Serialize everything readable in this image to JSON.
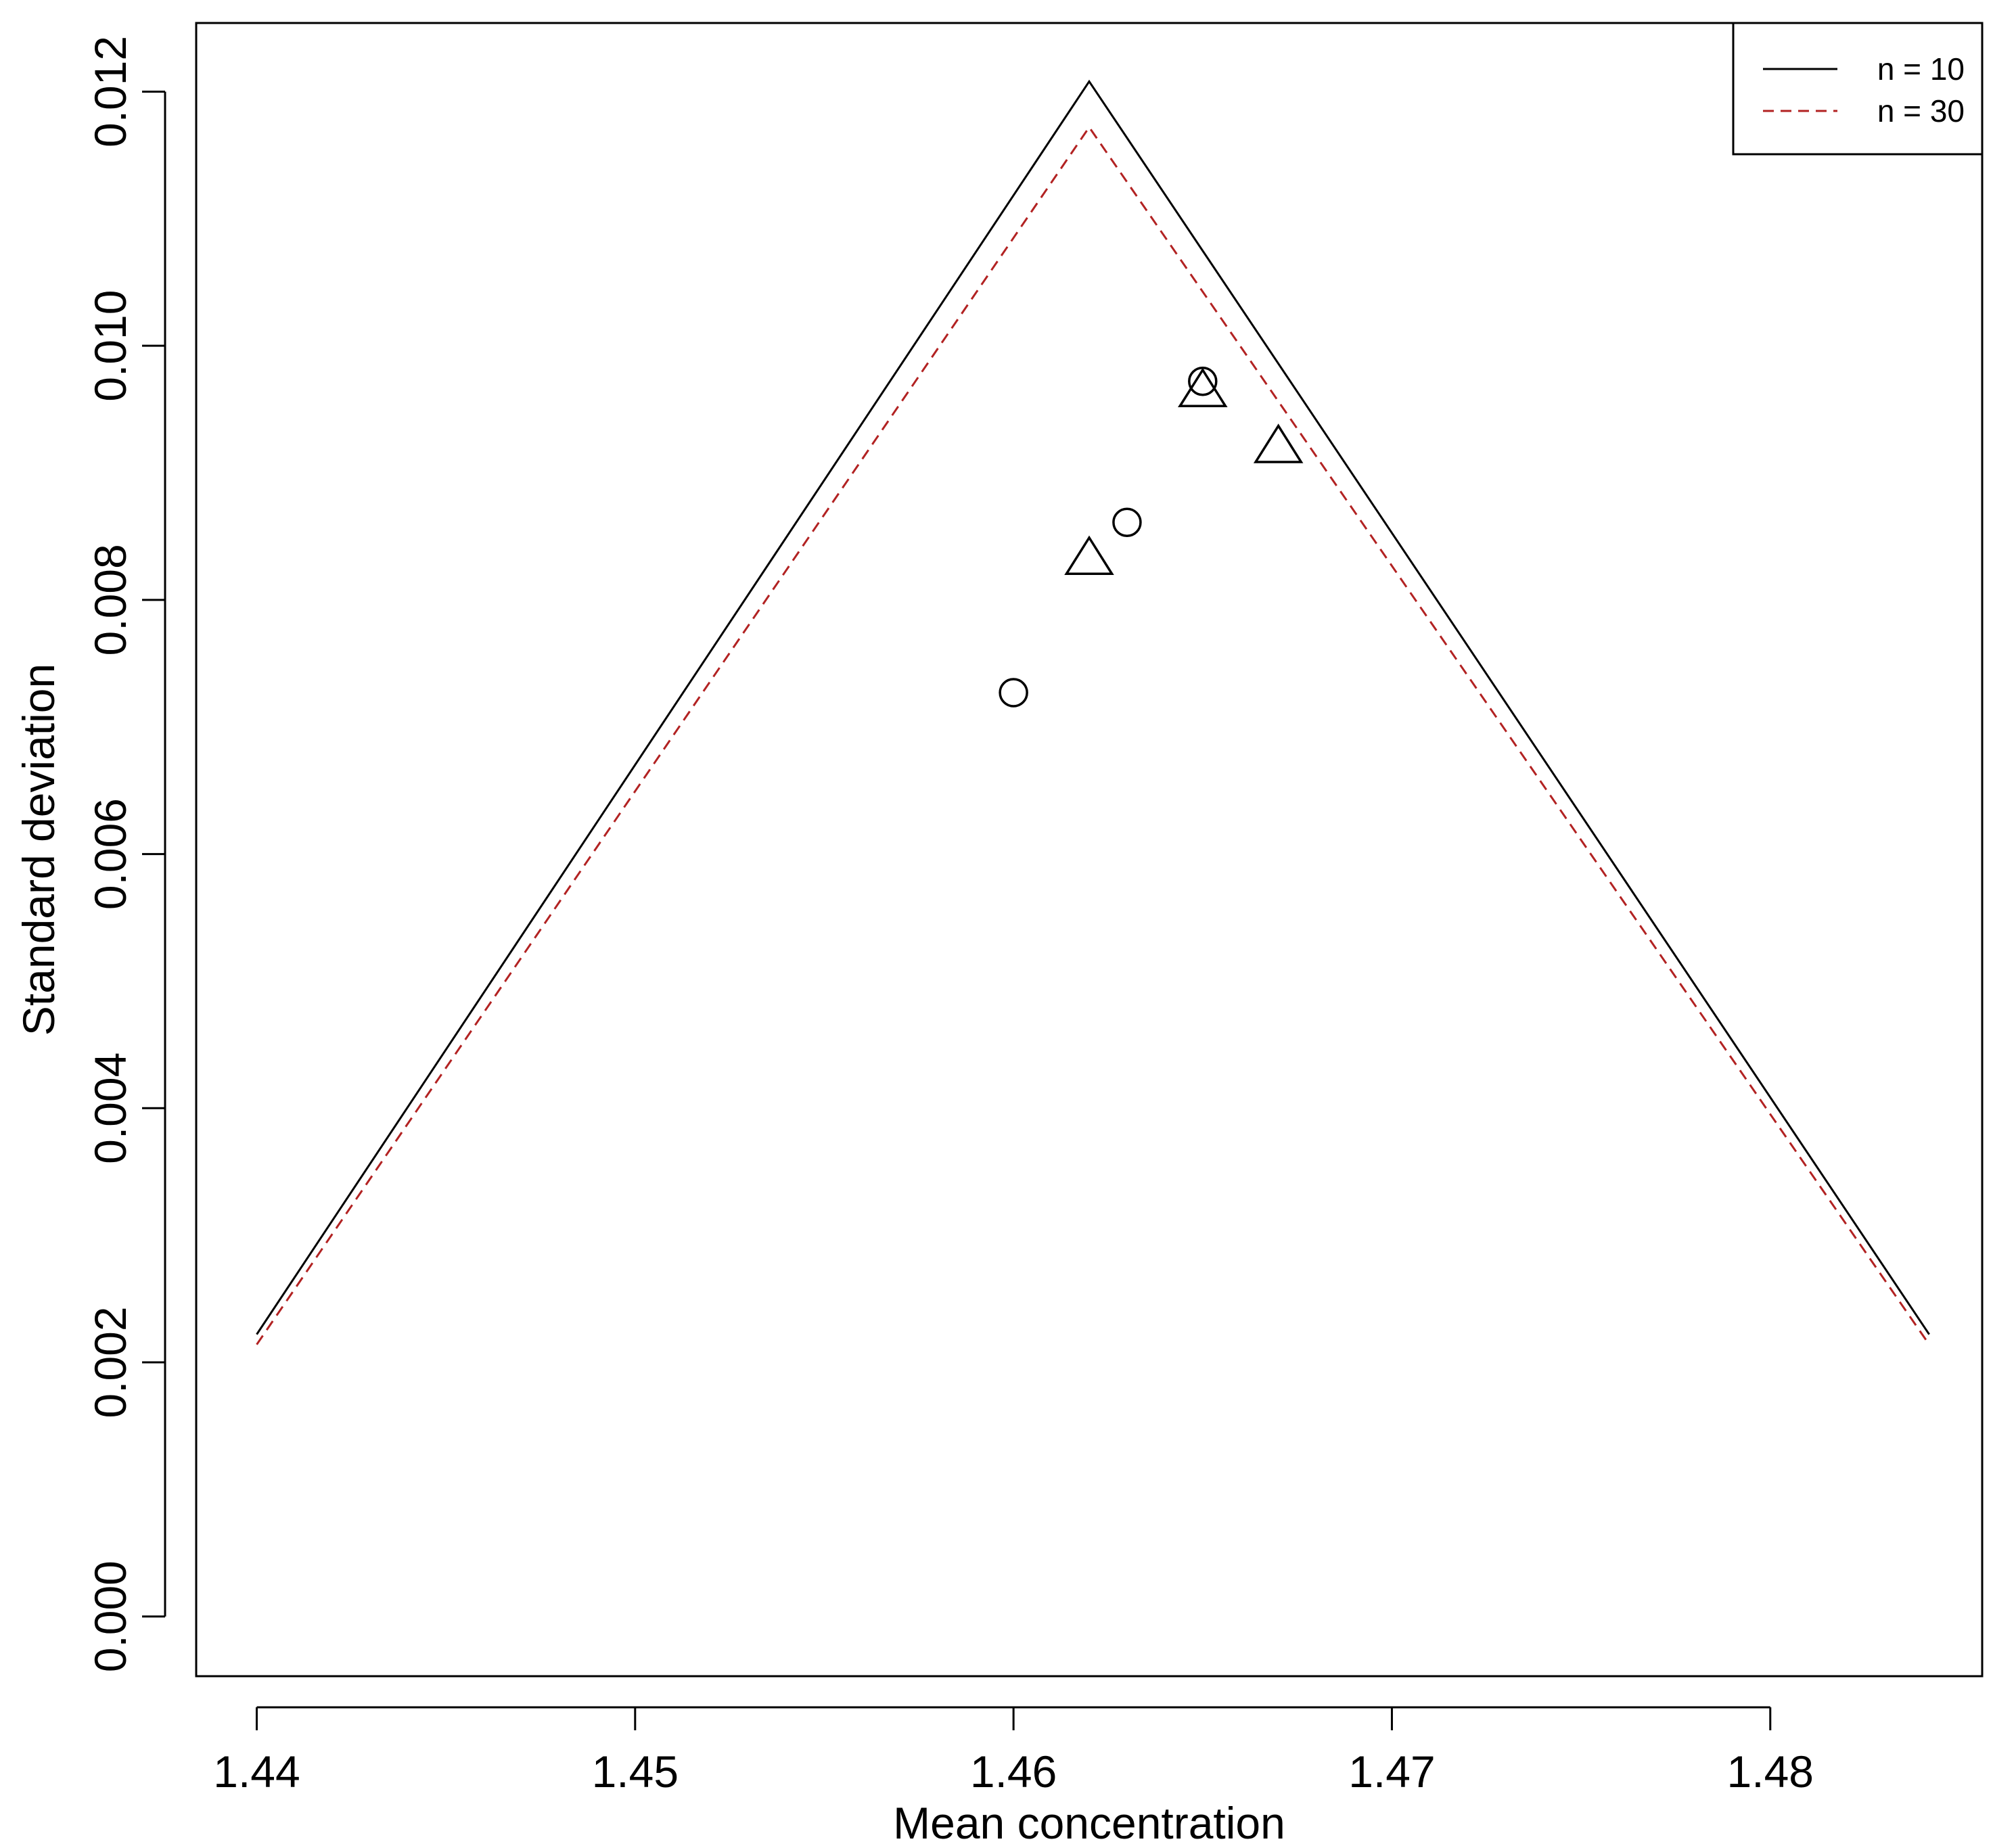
{
  "chart_data": {
    "type": "line",
    "title": "",
    "xlabel": "Mean concentration",
    "ylabel": "Standard deviation",
    "xlim": [
      1.4384,
      1.4856
    ],
    "ylim": [
      -0.00047,
      0.01254
    ],
    "x_ticks": [
      1.44,
      1.45,
      1.46,
      1.47,
      1.48
    ],
    "x_tick_labels": [
      "1.44",
      "1.45",
      "1.46",
      "1.47",
      "1.48"
    ],
    "y_ticks": [
      0.0,
      0.002,
      0.004,
      0.006,
      0.008,
      0.01,
      0.012
    ],
    "y_tick_labels": [
      "0.000",
      "0.002",
      "0.004",
      "0.006",
      "0.008",
      "0.010",
      "0.012"
    ],
    "grid": false,
    "legend_position": "top-right",
    "series": [
      {
        "name": "n = 10",
        "style": "solid",
        "color": "#000000",
        "x": [
          1.44,
          1.462,
          1.4842
        ],
        "y": [
          0.00222,
          0.01208,
          0.00222
        ]
      },
      {
        "name": "n = 30",
        "style": "dashed",
        "color": "#b22222",
        "x": [
          1.44,
          1.462,
          1.4842
        ],
        "y": [
          0.00214,
          0.01172,
          0.00214
        ]
      }
    ],
    "points": [
      {
        "shape": "circle",
        "x": 1.46,
        "y": 0.00727
      },
      {
        "shape": "circle",
        "x": 1.463,
        "y": 0.00861
      },
      {
        "shape": "circle",
        "x": 1.465,
        "y": 0.00972
      },
      {
        "shape": "triangle",
        "x": 1.462,
        "y": 0.00833
      },
      {
        "shape": "triangle",
        "x": 1.465,
        "y": 0.00965
      },
      {
        "shape": "triangle",
        "x": 1.467,
        "y": 0.00921
      }
    ]
  }
}
